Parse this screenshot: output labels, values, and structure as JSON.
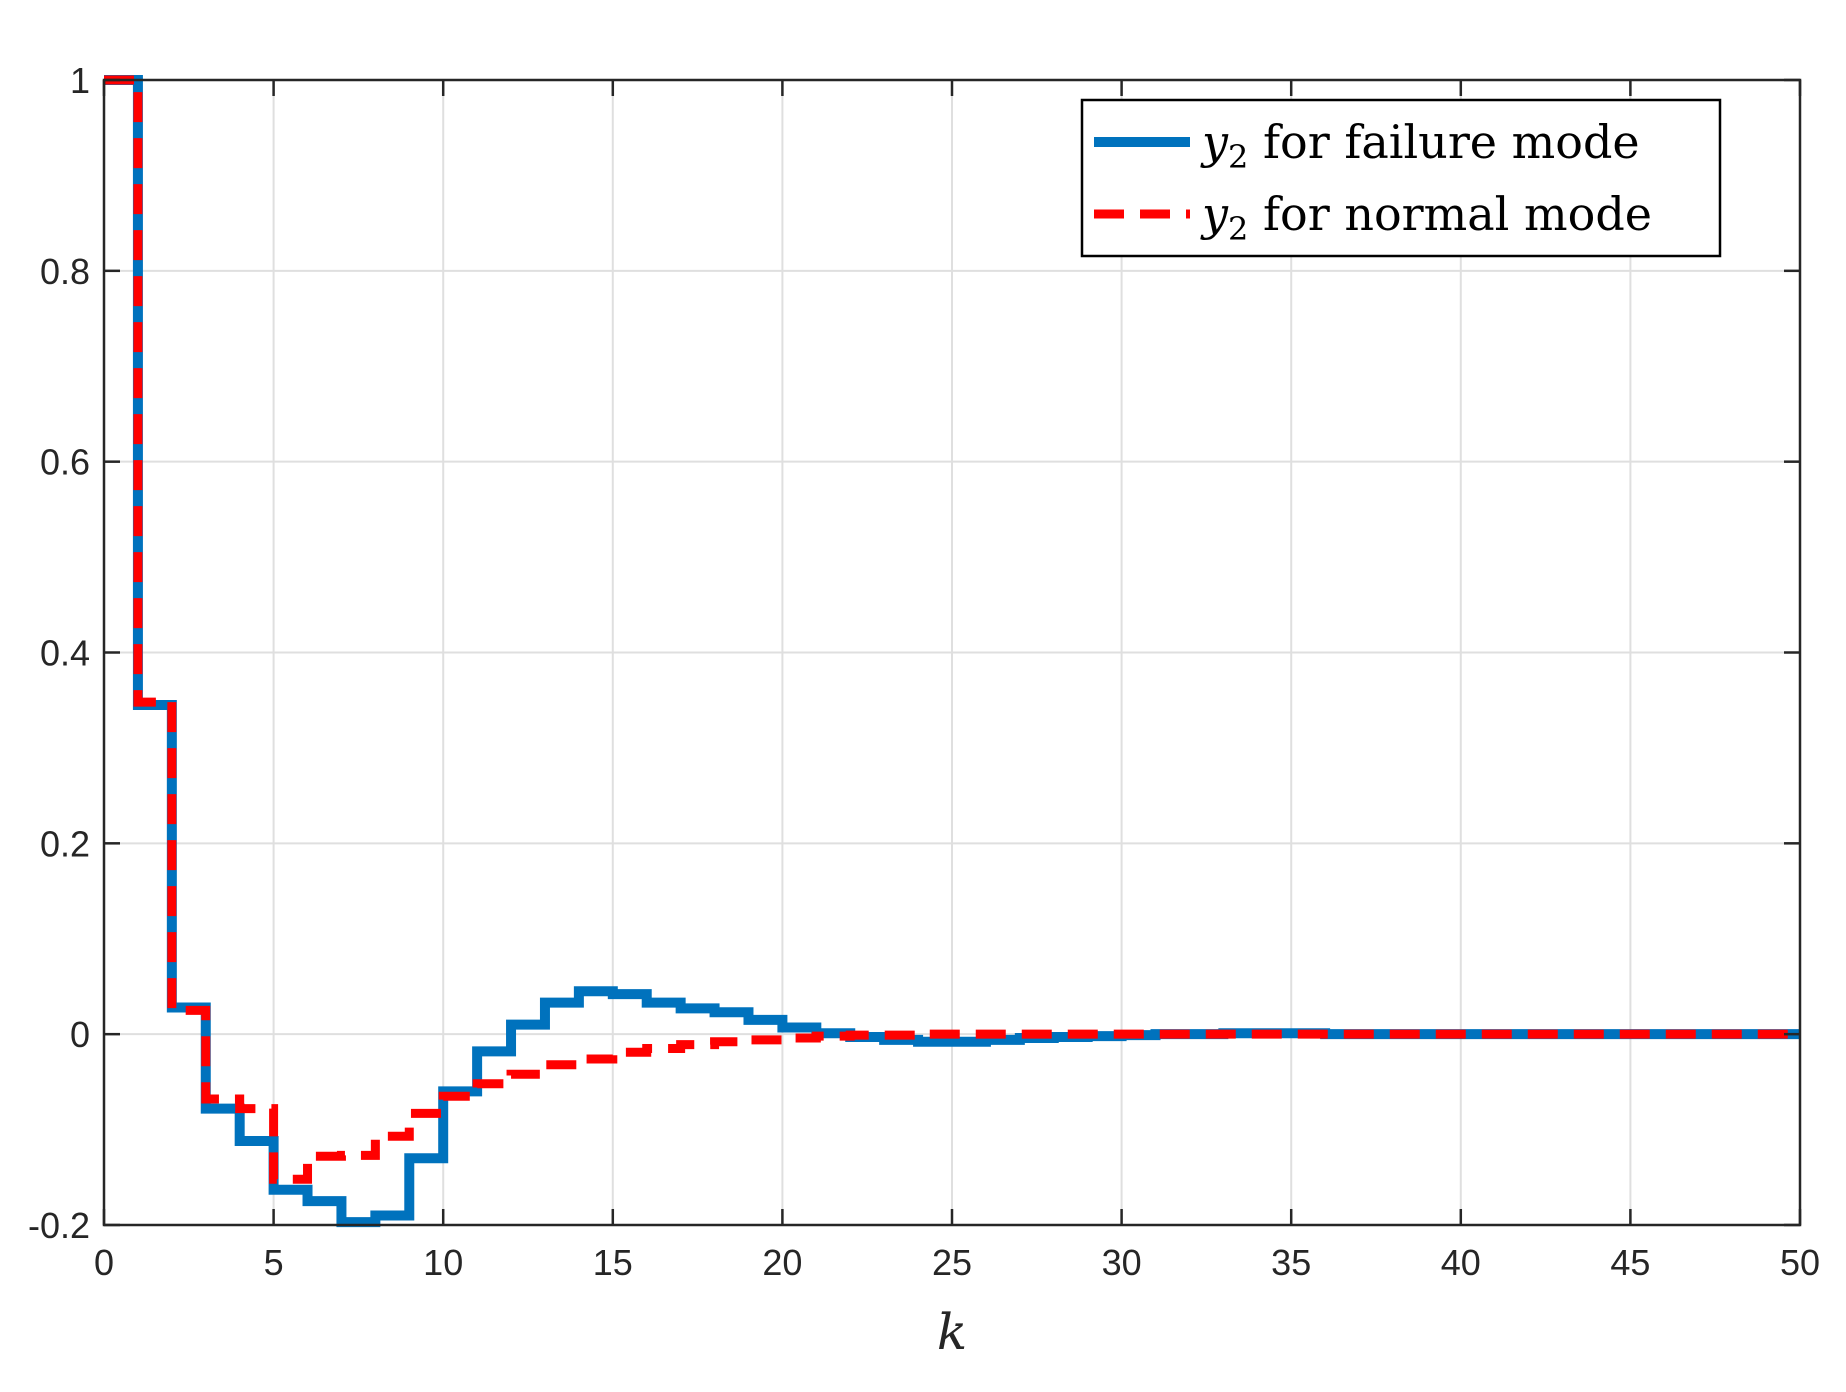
{
  "chart_data": {
    "type": "line",
    "step": true,
    "title": "",
    "xlabel": "k",
    "ylabel": "",
    "xlim": [
      0,
      50
    ],
    "ylim": [
      -0.2,
      1
    ],
    "xticks": [
      0,
      5,
      10,
      15,
      20,
      25,
      30,
      35,
      40,
      45,
      50
    ],
    "yticks": [
      -0.2,
      0,
      0.2,
      0.4,
      0.6,
      0.8,
      1
    ],
    "xtick_labels": [
      "0",
      "5",
      "10",
      "15",
      "20",
      "25",
      "30",
      "35",
      "40",
      "45",
      "50"
    ],
    "ytick_labels": [
      "-0.2",
      "0",
      "0.2",
      "0.4",
      "0.6",
      "0.8",
      "1"
    ],
    "grid": true,
    "legend_position": "top-right",
    "x": [
      0,
      1,
      2,
      3,
      4,
      5,
      6,
      7,
      8,
      9,
      10,
      11,
      12,
      13,
      14,
      15,
      16,
      17,
      18,
      19,
      20,
      21,
      22,
      23,
      24,
      25,
      26,
      27,
      28,
      29,
      30,
      31,
      32,
      33,
      34,
      35,
      36,
      37,
      38,
      39,
      40,
      41,
      42,
      43,
      44,
      45,
      46,
      47,
      48,
      49,
      50
    ],
    "series": [
      {
        "name_var": "y",
        "name_sub": "2",
        "name_text": " for failure mode",
        "color": "#0072BD",
        "style": "solid",
        "values": [
          1.0,
          0.345,
          0.028,
          -0.078,
          -0.112,
          -0.163,
          -0.175,
          -0.197,
          -0.19,
          -0.13,
          -0.06,
          -0.018,
          0.01,
          0.033,
          0.045,
          0.042,
          0.033,
          0.027,
          0.023,
          0.015,
          0.007,
          0.001,
          -0.003,
          -0.006,
          -0.008,
          -0.008,
          -0.006,
          -0.004,
          -0.003,
          -0.002,
          -0.001,
          0.0,
          0.0,
          0.001,
          0.001,
          0.001,
          0.0,
          0.0,
          0.0,
          0.0,
          0.0,
          0.0,
          0.0,
          0.0,
          0.0,
          0.0,
          0.0,
          0.0,
          0.0,
          0.0,
          0.0
        ]
      },
      {
        "name_var": "y",
        "name_sub": "2",
        "name_text": " for normal mode",
        "color": "#FF0000",
        "style": "dashed",
        "values": [
          1.0,
          0.348,
          0.025,
          -0.068,
          -0.078,
          -0.152,
          -0.128,
          -0.127,
          -0.107,
          -0.083,
          -0.065,
          -0.052,
          -0.042,
          -0.032,
          -0.026,
          -0.019,
          -0.015,
          -0.011,
          -0.008,
          -0.006,
          -0.004,
          -0.002,
          -0.001,
          -0.001,
          0.0,
          0.0,
          0.0,
          0.0,
          0.0,
          0.0,
          0.0,
          0.0,
          0.0,
          0.0,
          0.0,
          0.0,
          0.0,
          0.0,
          0.0,
          0.0,
          0.0,
          0.0,
          0.0,
          0.0,
          0.0,
          0.0,
          0.0,
          0.0,
          0.0,
          0.0,
          0.0
        ]
      }
    ]
  },
  "colors": {
    "grid": "#dfdfdf",
    "axis": "#262626"
  }
}
